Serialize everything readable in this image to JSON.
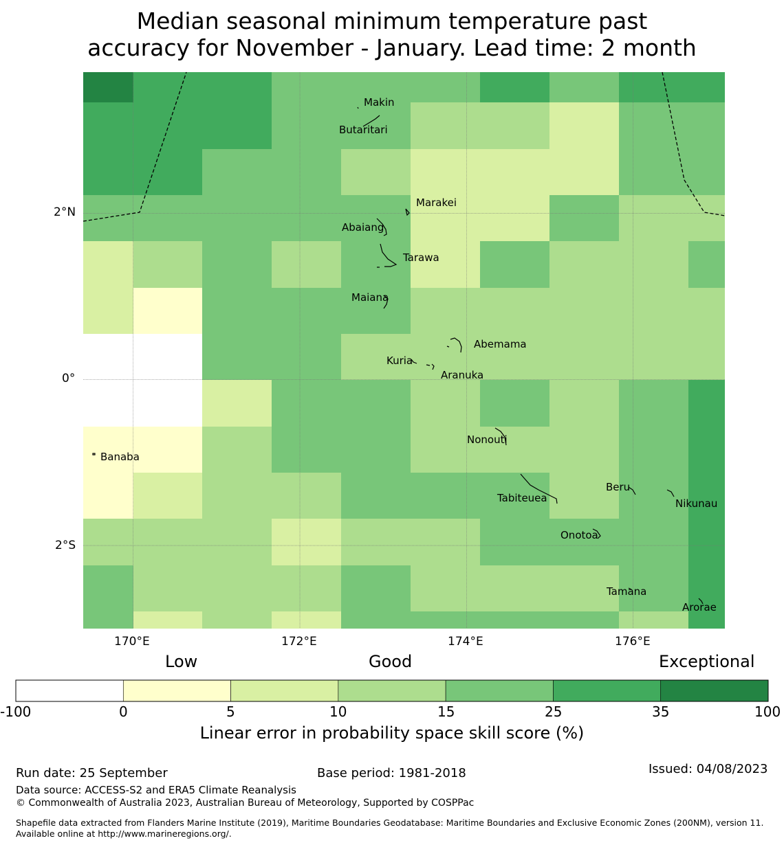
{
  "title": {
    "line1": "Median seasonal minimum temperature past",
    "line2": "accuracy for November - January. Lead time: 2 month"
  },
  "map": {
    "lon_range": [
      169.4,
      177.1
    ],
    "lat_range": [
      -3.0,
      3.7
    ],
    "grid_lon": [
      170,
      172,
      174,
      176
    ],
    "grid_lat": [
      2,
      0,
      -2
    ],
    "lon_labels": [
      "170°E",
      "172°E",
      "174°E",
      "176°E"
    ],
    "lat_labels": [
      "2°N",
      "0°",
      "2°S"
    ],
    "skill_grid": {
      "note": "rows north to south, columns west to east; values are colour category indexes 0-6 matching the legend bins",
      "rows": [
        [
          6,
          5,
          5,
          4,
          4,
          4,
          5,
          4,
          5,
          5
        ],
        [
          5,
          5,
          5,
          4,
          4,
          3,
          3,
          2,
          4,
          4
        ],
        [
          5,
          5,
          4,
          4,
          3,
          2,
          2,
          2,
          4,
          4
        ],
        [
          4,
          4,
          4,
          4,
          4,
          2,
          2,
          4,
          3,
          3
        ],
        [
          2,
          3,
          4,
          3,
          4,
          2,
          4,
          3,
          3,
          4
        ],
        [
          2,
          1,
          4,
          4,
          4,
          3,
          3,
          3,
          3,
          3
        ],
        [
          0,
          0,
          4,
          4,
          3,
          3,
          3,
          3,
          3,
          3
        ],
        [
          0,
          0,
          2,
          4,
          4,
          3,
          4,
          3,
          4,
          5
        ],
        [
          1,
          1,
          3,
          4,
          4,
          3,
          3,
          3,
          4,
          5
        ],
        [
          1,
          2,
          3,
          3,
          4,
          4,
          4,
          3,
          4,
          5
        ],
        [
          3,
          3,
          3,
          2,
          3,
          3,
          4,
          4,
          4,
          5
        ],
        [
          4,
          3,
          3,
          3,
          4,
          3,
          3,
          3,
          4,
          5
        ],
        [
          4,
          2,
          3,
          2,
          4,
          4,
          4,
          4,
          3,
          5
        ]
      ]
    },
    "islands": [
      {
        "name": "Makin"
      },
      {
        "name": "Butaritari"
      },
      {
        "name": "Marakei"
      },
      {
        "name": "Abaiang"
      },
      {
        "name": "Tarawa"
      },
      {
        "name": "Maiana"
      },
      {
        "name": "Abemama"
      },
      {
        "name": "Kuria"
      },
      {
        "name": "Aranuka"
      },
      {
        "name": "Nonouti"
      },
      {
        "name": "Banaba"
      },
      {
        "name": "Beru"
      },
      {
        "name": "Tabiteuea"
      },
      {
        "name": "Nikunau"
      },
      {
        "name": "Onotoa"
      },
      {
        "name": "Tamana"
      },
      {
        "name": "Arorae"
      }
    ]
  },
  "legend": {
    "categories": {
      "low": "Low",
      "good": "Good",
      "exceptional": "Exceptional"
    },
    "bins": [
      {
        "label": "-100",
        "color": "#ffffff"
      },
      {
        "label": "0",
        "color": "#ffffcc"
      },
      {
        "label": "5",
        "color": "#d9f0a3"
      },
      {
        "label": "10",
        "color": "#addd8e"
      },
      {
        "label": "15",
        "color": "#78c679"
      },
      {
        "label": "25",
        "color": "#41ab5d"
      },
      {
        "label": "35",
        "color": "#238443"
      }
    ],
    "end_label": "100",
    "axis_label": "Linear error in probability space skill score (%)"
  },
  "footer": {
    "run_date": "Run date: 25 September",
    "base_period": "Base period: 1981-2018",
    "issued": "Issued: 04/08/2023",
    "data_source": "Data source: ACCESS-S2 and ERA5 Climate Reanalysis",
    "copyright": "© Commonwealth of Australia 2023, Australian Bureau of Meteorology, Supported by COSPPac",
    "shapefile": "Shapefile data extracted from Flanders Marine Institute (2019), Maritime Boundaries Geodatabase: Maritime Boundaries and Exclusive Economic Zones (200NM), version 11. Available online at http://www.marineregions.org/."
  }
}
